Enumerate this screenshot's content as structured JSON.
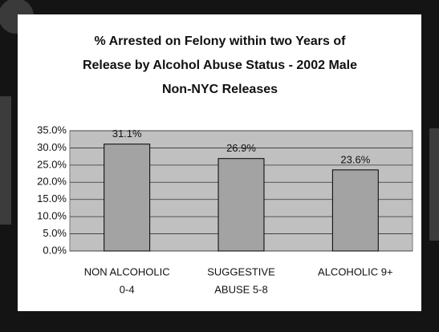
{
  "chart_data": {
    "type": "bar",
    "title": [
      "% Arrested on Felony within two Years of",
      "Release by Alcohol Abuse Status - 2002 Male",
      "Non-NYC Releases"
    ],
    "categories": [
      [
        "NON ALCOHOLIC",
        "0-4"
      ],
      [
        "SUGGESTIVE",
        "ABUSE 5-8"
      ],
      [
        "ALCOHOLIC 9+"
      ]
    ],
    "values": [
      31.1,
      26.9,
      23.6
    ],
    "value_labels": [
      "31.1%",
      "26.9%",
      "23.6%"
    ],
    "color": "#a3a3a3",
    "ylim": [
      0,
      35
    ],
    "yticks": [
      {
        "value": 0,
        "label": "0.0%"
      },
      {
        "value": 5,
        "label": "5.0%"
      },
      {
        "value": 10,
        "label": "10.0%"
      },
      {
        "value": 15,
        "label": "15.0%"
      },
      {
        "value": 20,
        "label": "20.0%"
      },
      {
        "value": 25,
        "label": "25.0%"
      },
      {
        "value": 30,
        "label": "30.0%"
      },
      {
        "value": 35,
        "label": "35.0%"
      }
    ],
    "grid": true
  }
}
